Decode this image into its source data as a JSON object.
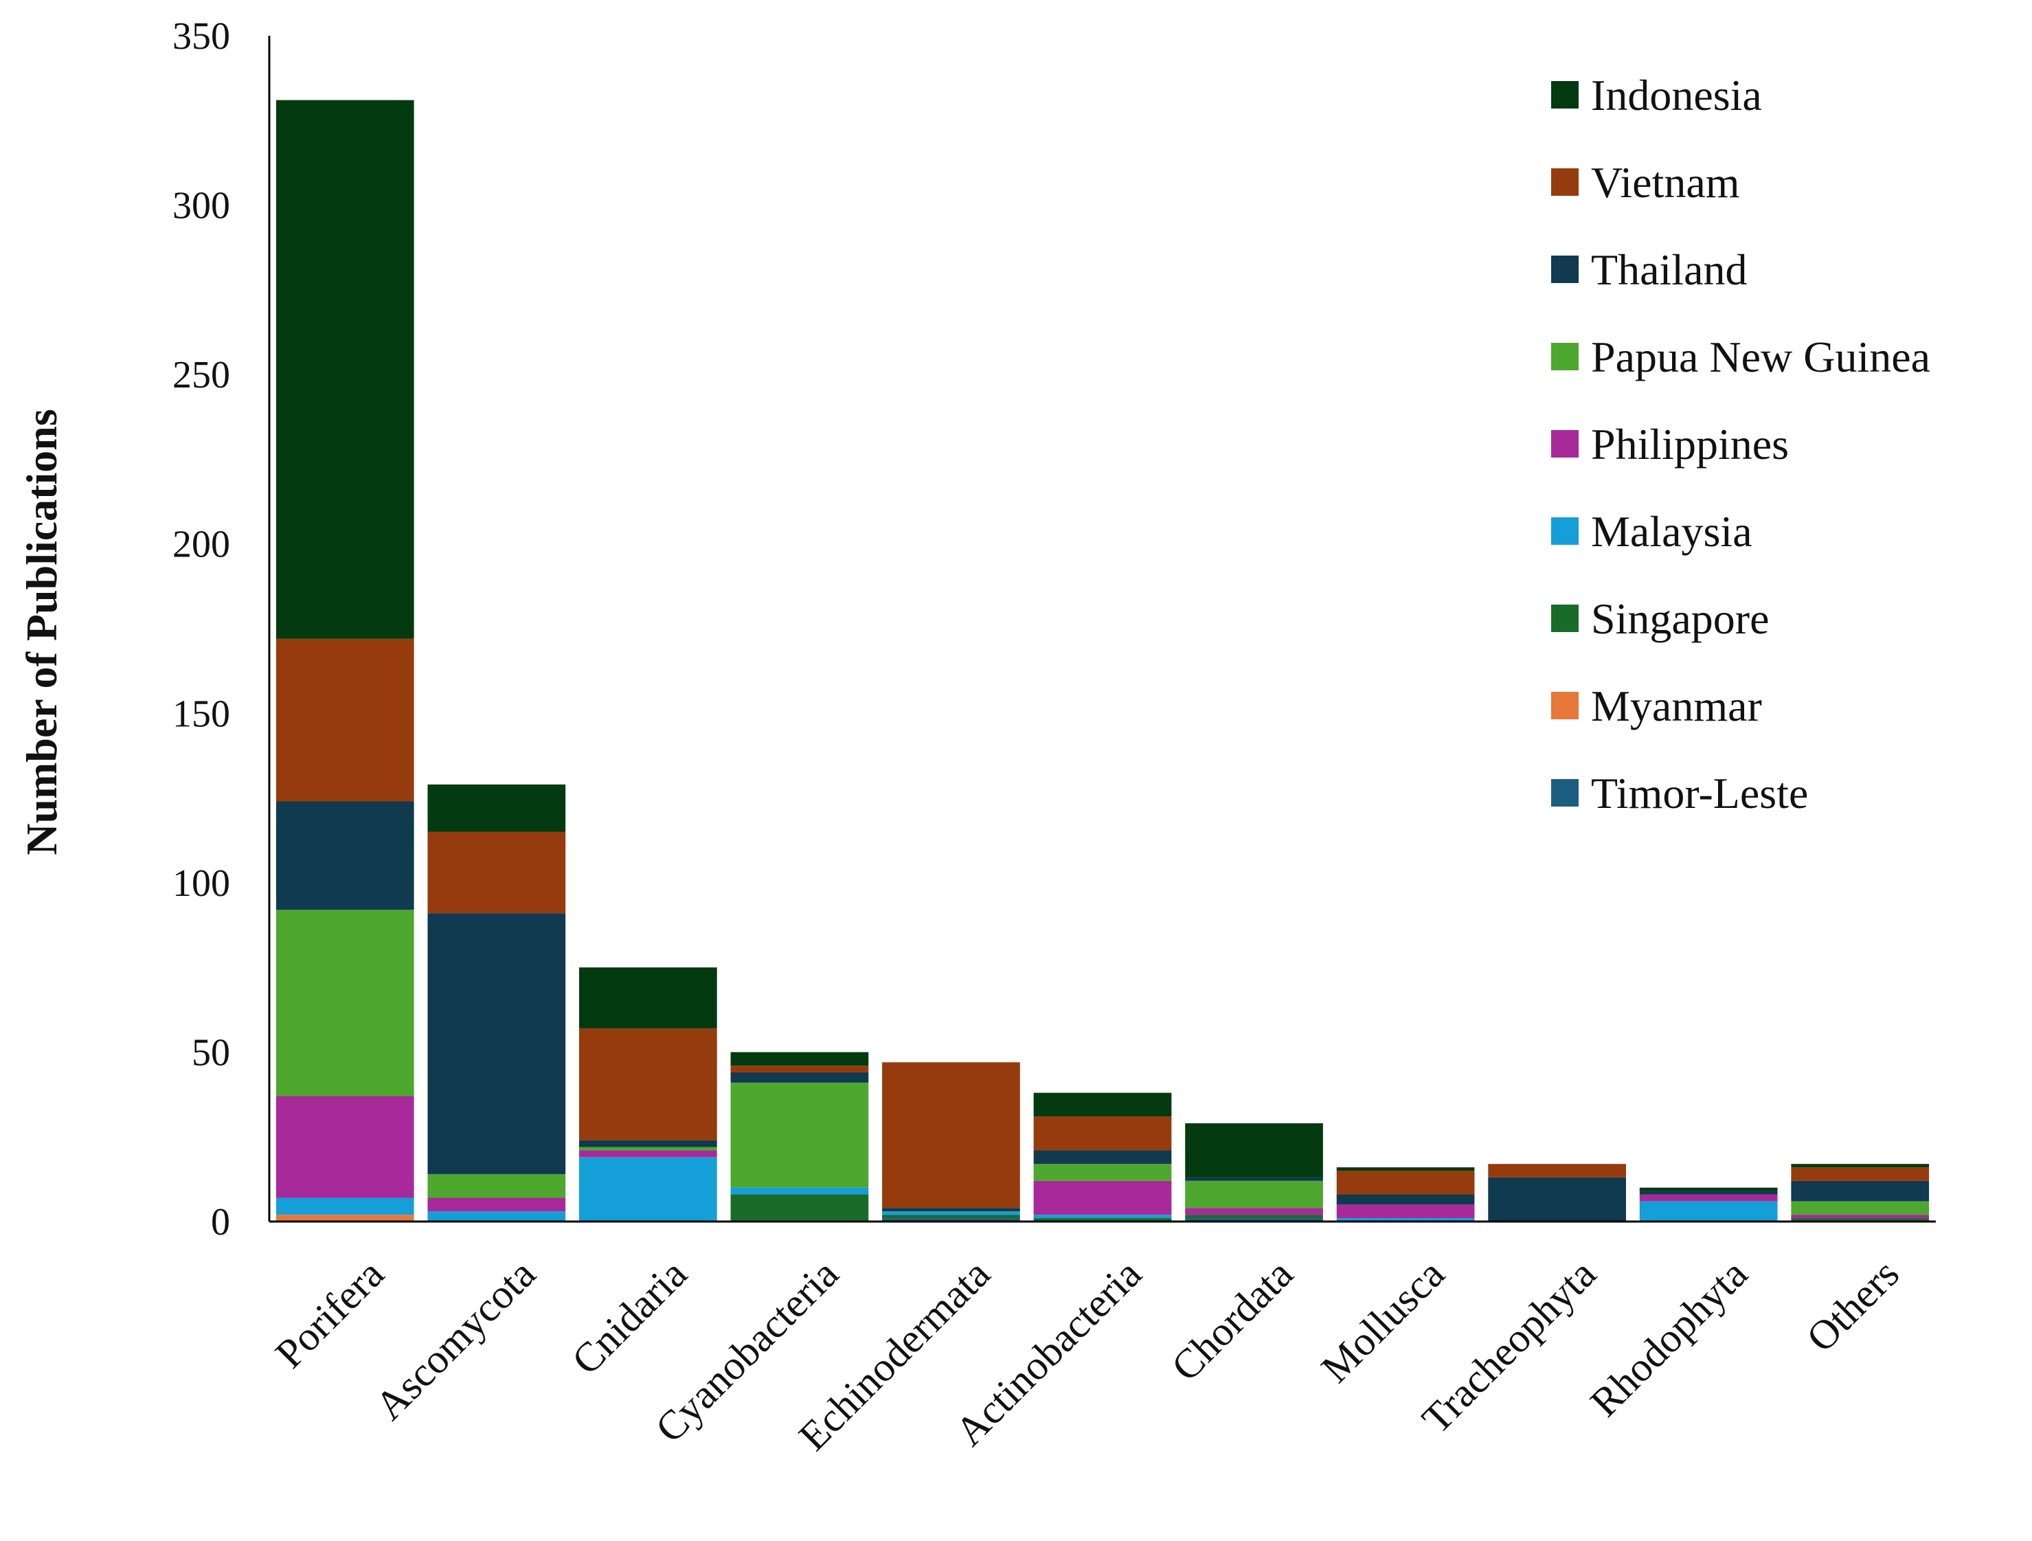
{
  "chart_data": {
    "type": "bar",
    "stacked": true,
    "title": "",
    "xlabel": "",
    "ylabel": "Number of Publications",
    "ylim": [
      0,
      350
    ],
    "yticks": [
      0,
      50,
      100,
      150,
      200,
      250,
      300,
      350
    ],
    "grid": false,
    "legend_position": "top-right",
    "categories": [
      "Porifera",
      "Ascomycota",
      "Cnidaria",
      "Cyanobacteria",
      "Echinodermata",
      "Actinobacteria",
      "Chordata",
      "Mollusca",
      "Tracheophyta",
      "Rhodophyta",
      "Others"
    ],
    "series": [
      {
        "name": "Myanmar",
        "color": "#E8773A",
        "values": [
          2,
          0,
          0,
          0,
          0,
          0,
          0,
          0,
          0,
          0,
          0
        ]
      },
      {
        "name": "Timor-Leste",
        "color": "#1B5E82",
        "values": [
          0,
          0,
          0,
          0,
          1,
          0,
          1,
          0,
          0,
          0,
          0
        ]
      },
      {
        "name": "Singapore",
        "color": "#1A6B2A",
        "values": [
          0,
          0,
          0,
          8,
          1,
          1,
          1,
          0,
          0,
          0,
          1
        ]
      },
      {
        "name": "Malaysia",
        "color": "#159FD8",
        "values": [
          5,
          3,
          19,
          2,
          1,
          1,
          0,
          1,
          0,
          6,
          0
        ]
      },
      {
        "name": "Philippines",
        "color": "#A8299A",
        "values": [
          30,
          4,
          2,
          0,
          0,
          10,
          2,
          4,
          0,
          2,
          1
        ]
      },
      {
        "name": "Papua New Guinea",
        "color": "#4EA72E",
        "values": [
          55,
          7,
          1,
          31,
          0,
          5,
          8,
          0,
          0,
          0,
          4
        ]
      },
      {
        "name": "Thailand",
        "color": "#0F3A50",
        "values": [
          32,
          77,
          2,
          3,
          1,
          4,
          1,
          3,
          13,
          1,
          6
        ]
      },
      {
        "name": "Vietnam",
        "color": "#963B0E",
        "values": [
          48,
          24,
          33,
          2,
          43,
          10,
          0,
          7,
          4,
          0,
          4
        ]
      },
      {
        "name": "Indonesia",
        "color": "#043A0F",
        "values": [
          159,
          14,
          18,
          4,
          0,
          7,
          16,
          1,
          0,
          1,
          1
        ]
      }
    ],
    "legend_order": [
      "Indonesia",
      "Vietnam",
      "Thailand",
      "Papua New Guinea",
      "Philippines",
      "Malaysia",
      "Singapore",
      "Myanmar",
      "Timor-Leste"
    ]
  }
}
